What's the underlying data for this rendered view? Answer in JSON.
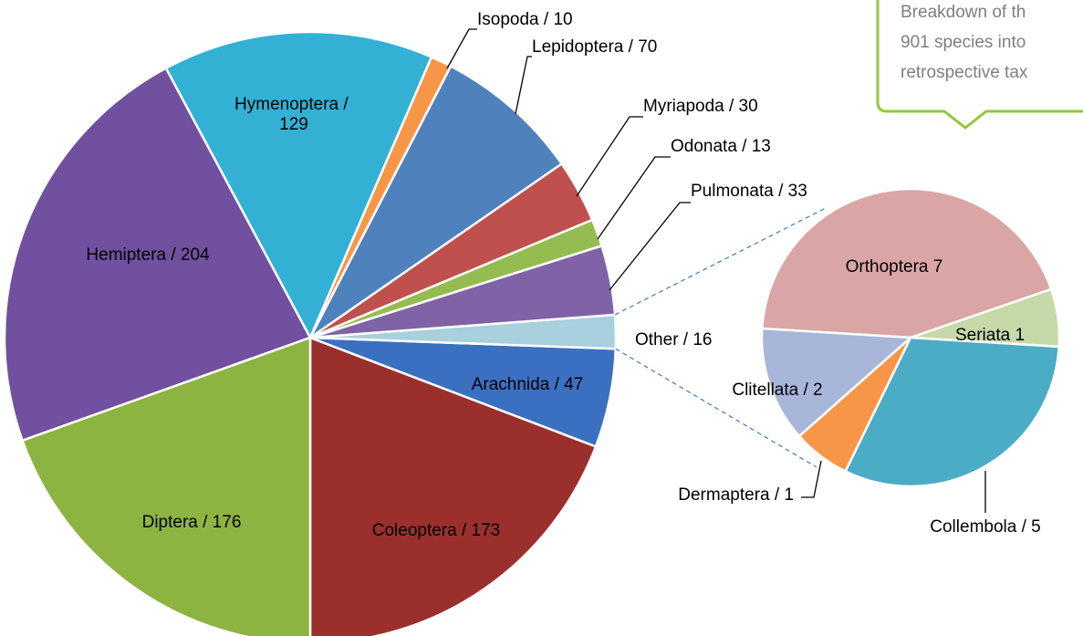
{
  "chart_data": [
    {
      "type": "pie",
      "categories": [
        "Coleoptera",
        "Arachnida",
        "Other",
        "Pulmonata",
        "Odonata",
        "Myriapoda",
        "Lepidoptera",
        "Isopoda",
        "Hymenoptera",
        "Hemiptera",
        "Diptera"
      ],
      "values": [
        173,
        47,
        16,
        33,
        13,
        30,
        70,
        10,
        129,
        204,
        176
      ],
      "value_labels": [
        "Coleoptera / 173",
        "Arachnida / 47",
        "Other / 16",
        "Pulmonata / 33",
        "Odonata / 13",
        "Myriapoda / 30",
        "Lepidoptera / 70",
        "Isopoda / 10",
        "Hymenoptera / 129",
        "Hemiptera / 204",
        "Diptera / 176"
      ],
      "colors": [
        "#9b2f2c",
        "#3b70c0",
        "#a8d0dd",
        "#7f63a6",
        "#95bc51",
        "#c0504d",
        "#4f81bd",
        "#f79646",
        "#33b1d5",
        "#70509f",
        "#8db440"
      ],
      "annotation": [
        "Breakdown of th",
        "901 species into",
        "retrospective tax"
      ]
    },
    {
      "type": "pie",
      "categories": [
        "Orthoptera",
        "Seriata",
        "Collembola",
        "Dermaptera",
        "Clitellata"
      ],
      "values": [
        7,
        1,
        5,
        1,
        2
      ],
      "value_labels": [
        "Orthoptera 7",
        "Seriata 1",
        "Collembola / 5",
        "Dermaptera / 1",
        "Clitellata / 2"
      ],
      "colors": [
        "#d9a6a5",
        "#c5d9a9",
        "#4bacc6",
        "#f79646",
        "#a7b6d9"
      ]
    }
  ]
}
